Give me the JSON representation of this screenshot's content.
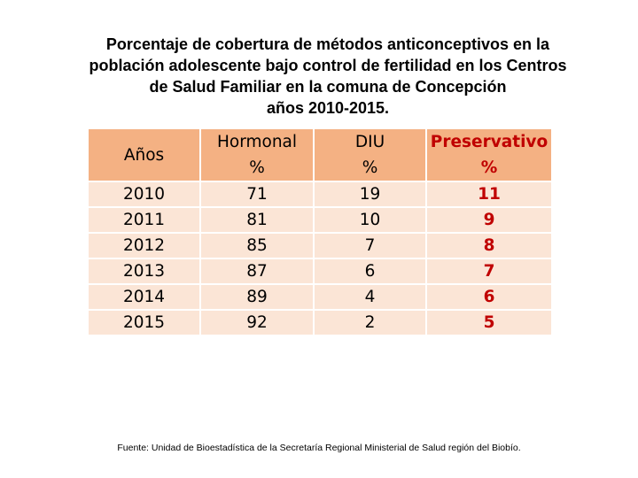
{
  "title_lines": [
    "Porcentaje de cobertura de métodos anticonceptivos en la",
    "población adolescente bajo control de fertilidad en los Centros",
    "de Salud Familiar en la comuna de Concepción",
    "años 2010-2015."
  ],
  "chart_data": {
    "type": "table",
    "columns": [
      {
        "label": "Años",
        "sub": ""
      },
      {
        "label": "Hormonal",
        "sub": "%"
      },
      {
        "label": "DIU",
        "sub": "%"
      },
      {
        "label": "Preservativo",
        "sub": "%"
      }
    ],
    "rows": [
      [
        "2010",
        "71",
        "19",
        "11"
      ],
      [
        "2011",
        "81",
        "10",
        "9"
      ],
      [
        "2012",
        "85",
        "7",
        "8"
      ],
      [
        "2013",
        "87",
        "6",
        "7"
      ],
      [
        "2014",
        "89",
        "4",
        "6"
      ],
      [
        "2015",
        "92",
        "2",
        "5"
      ]
    ],
    "highlight_column": 3,
    "colors": {
      "header_bg": "#f4b183",
      "cell_bg": "#fbe5d6",
      "highlight_text": "#c00000"
    }
  },
  "source": "Fuente: Unidad de Bioestadística de la Secretaría Regional Ministerial de Salud región del Biobío."
}
